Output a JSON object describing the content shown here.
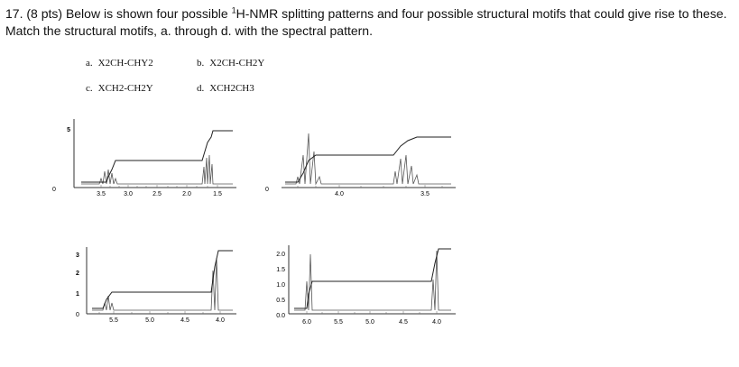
{
  "question": {
    "number": "17.",
    "points": "(8 pts)",
    "text_before_sup": "Below is shown four possible",
    "sup": "1",
    "text_after_sup": "H-NMR splitting patterns and four possible structural motifs that could give rise to these. Match the structural motifs, a. through d. with the spectral pattern."
  },
  "motifs": [
    {
      "letter": "a.",
      "formula": "X2CH-CHY2"
    },
    {
      "letter": "b.",
      "formula": "X2CH-CH2Y"
    },
    {
      "letter": "c.",
      "formula": "XCH2-CH2Y"
    },
    {
      "letter": "d.",
      "formula": "XCH2CH3"
    }
  ],
  "spectra": [
    {
      "id": "top-left",
      "ticks": [
        "3.5",
        "3.0",
        "2.5",
        "2.0",
        "1.5"
      ],
      "yaxis": [
        "5",
        "0"
      ]
    },
    {
      "id": "top-right",
      "ticks": [
        "4.0",
        "3.5"
      ],
      "yaxis": [
        "0"
      ]
    },
    {
      "id": "bottom-left",
      "ticks": [
        "5.5",
        "5.0",
        "4.5",
        "4.0"
      ],
      "yaxis": [
        "3",
        "2",
        "1",
        "0"
      ]
    },
    {
      "id": "bottom-right",
      "ticks": [
        "6.0",
        "5.5",
        "5.0",
        "4.5",
        "4.0"
      ],
      "yaxis": [
        "2.0",
        "1.5",
        "1.0",
        "0.5",
        "0.0"
      ]
    }
  ],
  "colors": {
    "ink": "#111111",
    "plot": "#555555"
  }
}
